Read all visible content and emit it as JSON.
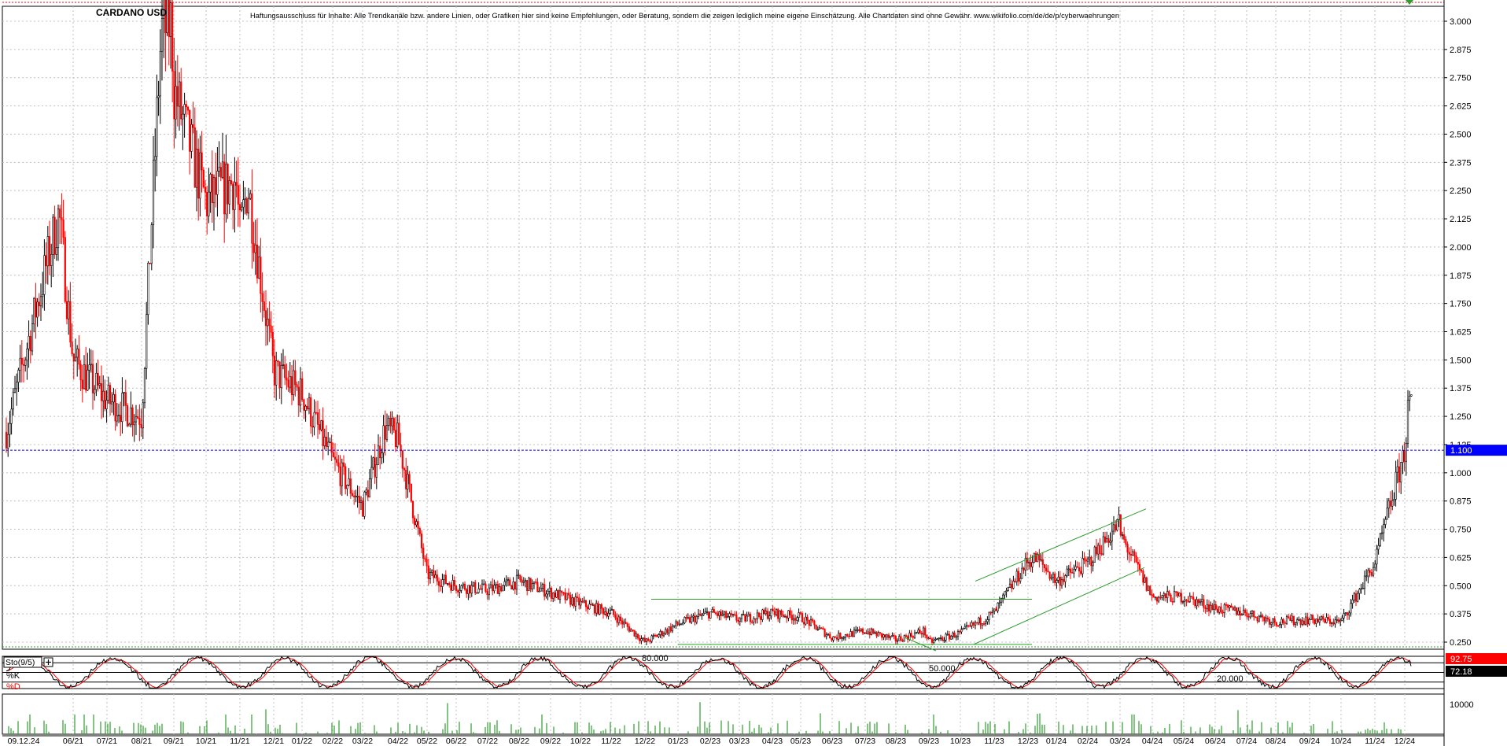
{
  "header": {
    "symbol": "CARDANO USD",
    "disclaimer": "Haftungsausschluss für Inhalte: Alle Trendkanäle bzw. andere Linien, oder Grafiken hier sind keine Empfehlungen, oder Beratung, sondern die zeigen lediglich meine eigene Einschätzung. Alle Chartdaten sind ohne Gewähr.  www.wikifolio.com/de/de/p/cyberwaehrungen"
  },
  "price_axis": {
    "ticks": [
      "3.000",
      "2.875",
      "2.750",
      "2.625",
      "2.500",
      "2.375",
      "2.250",
      "2.125",
      "2.000",
      "1.875",
      "1.750",
      "1.625",
      "1.500",
      "1.375",
      "1.250",
      "1.125",
      "1.000",
      "0.875",
      "0.750",
      "0.625",
      "0.500",
      "0.375",
      "0.250"
    ],
    "current_price_label": "1.100",
    "current_price": 1.1
  },
  "oscillator": {
    "name": "Sto(9/5)",
    "k_label": "%K",
    "d_label": "%D",
    "k_value_label": "92.75",
    "d_value_label": "72.18",
    "level_labels": [
      "80.000",
      "50.000",
      "20.000"
    ],
    "levels": [
      80,
      50,
      20
    ]
  },
  "volume_axis": {
    "tick_label": "10000"
  },
  "x_axis": {
    "labels": [
      "09.12.24",
      "06/21",
      "07/21",
      "08/21",
      "09/21",
      "10/21",
      "11/21",
      "12/21",
      "01/22",
      "02/22",
      "03/22",
      "04/22",
      "05/22",
      "06/22",
      "07/22",
      "08/22",
      "09/22",
      "10/22",
      "11/22",
      "12/22",
      "01/23",
      "02/23",
      "03/23",
      "04/23",
      "05/23",
      "06/23",
      "07/23",
      "08/23",
      "09/23",
      "10/23",
      "11/23",
      "12/23",
      "01/24",
      "02/24",
      "03/24",
      "04/24",
      "05/24",
      "06/24",
      "07/24",
      "08/24",
      "09/24",
      "10/24",
      "11/24",
      "12/24"
    ]
  },
  "colors": {
    "up_candle": "#000000",
    "down_candle": "#ff0000",
    "trendline": "#2e9e2e",
    "current_price_line": "#0000ff",
    "current_price_tag_bg": "#0000ff",
    "k_tag_bg": "#ff0000",
    "d_tag_bg": "#000000",
    "volume_bar": "#2e9e2e",
    "grid": "#c0c0c0"
  },
  "chart_data": {
    "type": "line",
    "title": "CARDANO USD",
    "xlabel": "",
    "ylabel": "",
    "ylim": [
      0.2,
      3.05
    ],
    "grid": true,
    "x": [
      "06/21",
      "07/21",
      "08/21",
      "09/21",
      "10/21",
      "11/21",
      "12/21",
      "01/22",
      "02/22",
      "03/22",
      "04/22",
      "05/22",
      "06/22",
      "07/22",
      "08/22",
      "09/22",
      "10/22",
      "11/22",
      "12/22",
      "01/23",
      "02/23",
      "03/23",
      "04/23",
      "05/23",
      "06/23",
      "07/23",
      "08/23",
      "09/23",
      "10/23",
      "11/23",
      "12/23",
      "01/24",
      "02/24",
      "03/24",
      "04/24",
      "05/24",
      "06/24",
      "07/24",
      "08/24",
      "09/24",
      "10/24",
      "11/24",
      "12/24"
    ],
    "series": [
      {
        "values": [
          1.5,
          1.32,
          1.25,
          2.7,
          2.2,
          2.05,
          1.45,
          1.35,
          1.05,
          0.85,
          1.15,
          0.55,
          0.5,
          0.48,
          0.52,
          0.47,
          0.42,
          0.38,
          0.25,
          0.33,
          0.38,
          0.35,
          0.38,
          0.36,
          0.27,
          0.3,
          0.26,
          0.25,
          0.29,
          0.38,
          0.61,
          0.52,
          0.6,
          0.73,
          0.45,
          0.45,
          0.4,
          0.38,
          0.34,
          0.35,
          0.34,
          0.6,
          1.1
        ]
      }
    ],
    "stochastic": {
      "k_last": 92.75,
      "d_last": 72.18,
      "levels": [
        80,
        50,
        20
      ]
    },
    "trendlines": [
      {
        "name": "horizontal resistance 2023",
        "from": [
          "01/23",
          0.44
        ],
        "to": [
          "11/23",
          0.44
        ]
      },
      {
        "name": "support 2023",
        "from": [
          "01/23",
          0.24
        ],
        "to": [
          "11/23",
          0.24
        ]
      },
      {
        "name": "rising channel upper",
        "from": [
          "11/23",
          0.52
        ],
        "to": [
          "04/24",
          0.84
        ]
      },
      {
        "name": "rising channel lower",
        "from": [
          "10/23",
          0.24
        ],
        "to": [
          "04/24",
          0.58
        ]
      }
    ]
  }
}
